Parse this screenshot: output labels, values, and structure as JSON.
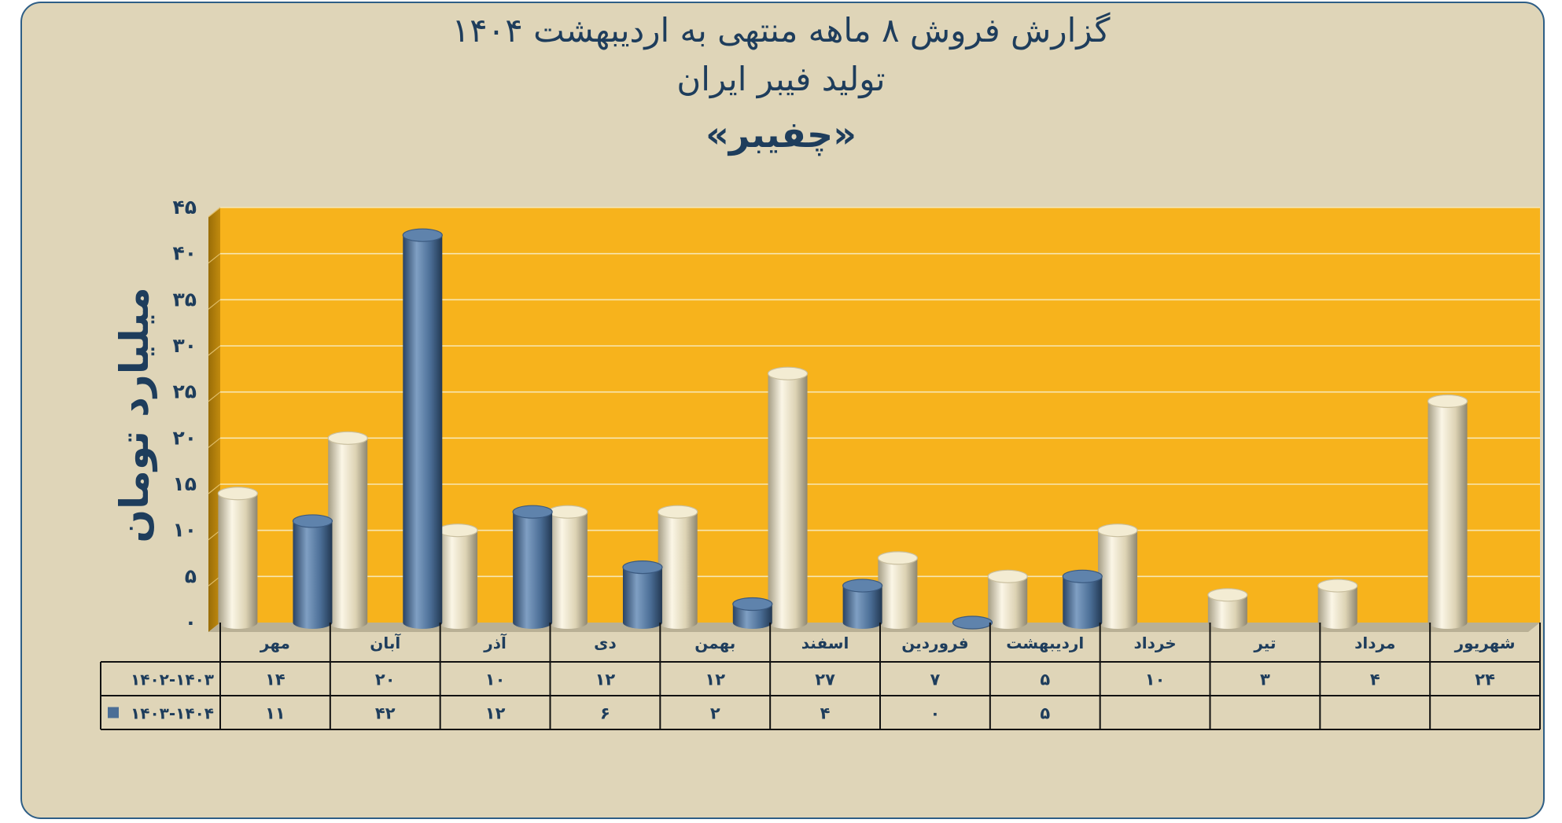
{
  "chart_data": {
    "type": "bar",
    "title": "گزارش  فروش ۸ ماهه منتهی به اردیبهشت ۱۴۰۴",
    "subtitle": "تولید فیبر ایران",
    "company": "«چفیبر»",
    "ylabel": "میلیارد تومان",
    "xlabel": "",
    "ylim": [
      0,
      45
    ],
    "yticks": [
      0,
      5,
      10,
      15,
      20,
      25,
      30,
      35,
      40,
      45
    ],
    "ytick_labels": [
      "۰",
      "۵",
      "۱۰",
      "۱۵",
      "۲۰",
      "۲۵",
      "۳۰",
      "۳۵",
      "۴۰",
      "۴۵"
    ],
    "grid": true,
    "categories": [
      "مهر",
      "آبان",
      "آذر",
      "دی",
      "بهمن",
      "اسفند",
      "فروردین",
      "اردیبهشت",
      "خرداد",
      "تیر",
      "مرداد",
      "شهریور"
    ],
    "series": [
      {
        "name": "۱۴۰۲-۱۴۰۳",
        "color": "#ddd3b4",
        "values": [
          14,
          20,
          10,
          12,
          12,
          27,
          7,
          5,
          10,
          3,
          4,
          24
        ],
        "labels": [
          "۱۴",
          "۲۰",
          "۱۰",
          "۱۲",
          "۱۲",
          "۲۷",
          "۷",
          "۵",
          "۱۰",
          "۳",
          "۴",
          "۲۴"
        ]
      },
      {
        "name": "۱۴۰۳-۱۴۰۴",
        "color": "#4b6e96",
        "values": [
          11,
          42,
          12,
          6,
          2,
          4,
          0,
          5,
          null,
          null,
          null,
          null
        ],
        "labels": [
          "۱۱",
          "۴۲",
          "۱۲",
          "۶",
          "۲",
          "۴",
          "۰",
          "۵",
          "",
          "",
          "",
          ""
        ]
      }
    ],
    "plot_background": "#f7b31c",
    "page_background": "#dfd5b8",
    "text_color": "#1e3d5c"
  }
}
